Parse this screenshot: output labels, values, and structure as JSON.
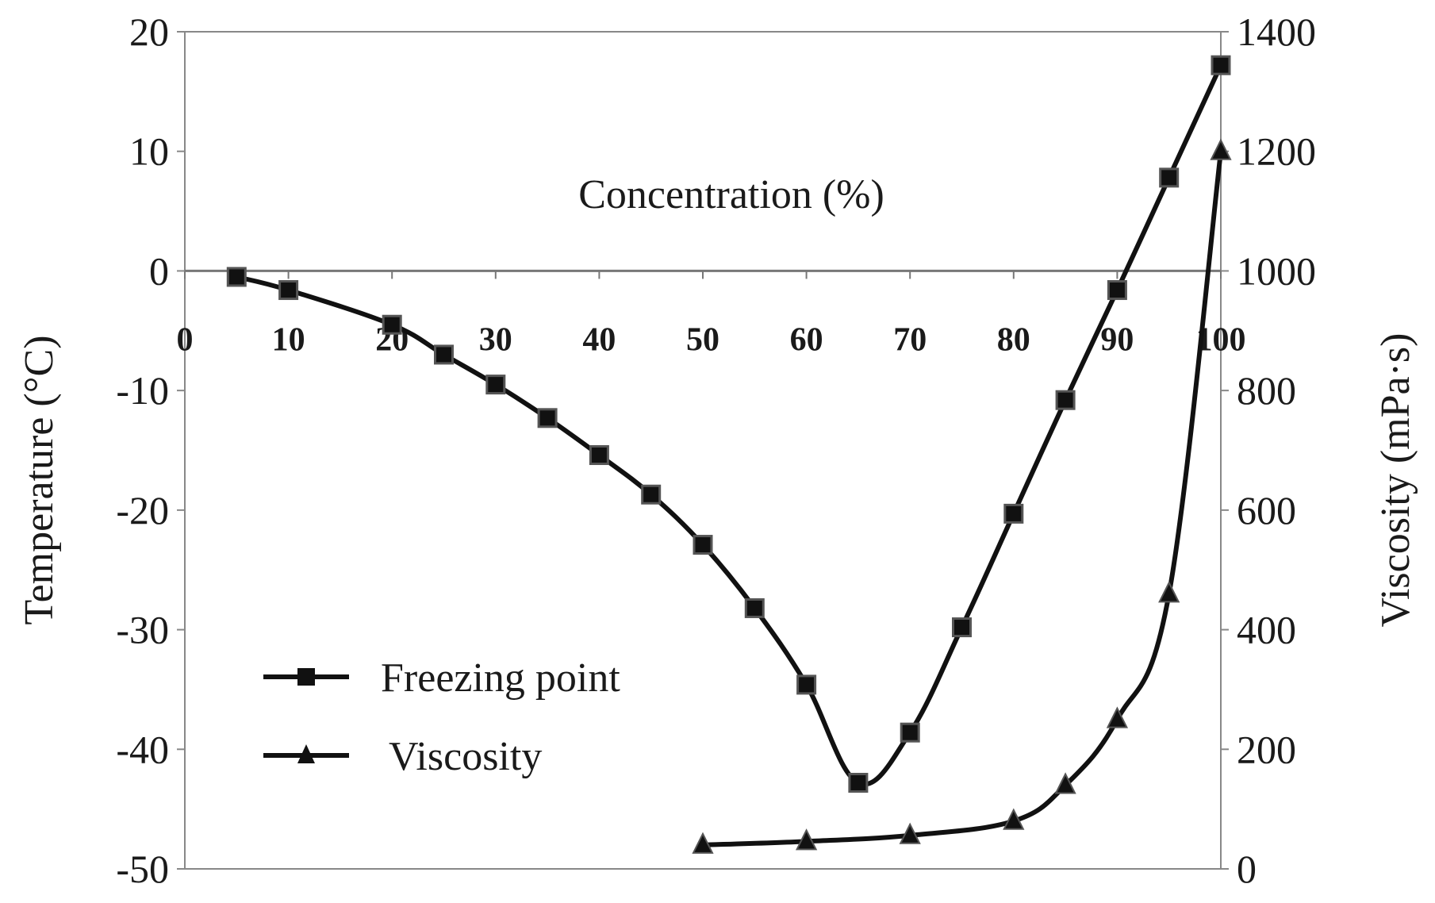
{
  "chart_data": {
    "type": "line",
    "title": "",
    "xlabel": "Concentration (%)",
    "ylabel": "Temperature (°C)",
    "y2label": "Viscosity (mPa·s)",
    "xlim": [
      0,
      100
    ],
    "ylim": [
      -50,
      20
    ],
    "y2lim": [
      0,
      1400
    ],
    "x_ticks": [
      "0",
      "10",
      "20",
      "30",
      "40",
      "50",
      "60",
      "70",
      "80",
      "90",
      "100"
    ],
    "y_ticks": [
      "20",
      "10",
      "0",
      "-10",
      "-20",
      "-30",
      "-40",
      "-50"
    ],
    "y2_ticks": [
      "1400",
      "1200",
      "1000",
      "800",
      "600",
      "400",
      "200",
      "0"
    ],
    "grid": false,
    "legend_position": "bottom-left",
    "series": [
      {
        "name": "Freezing point",
        "axis": "left",
        "marker": "square",
        "x": [
          5,
          10,
          20,
          25,
          30,
          35,
          40,
          45,
          50,
          55,
          60,
          65,
          70,
          75,
          80,
          85,
          90,
          95,
          100
        ],
        "values": [
          -0.5,
          -1.6,
          -4.5,
          -7,
          -9.5,
          -12.3,
          -15.4,
          -18.7,
          -22.9,
          -28.2,
          -34.6,
          -42.8,
          -38.6,
          -29.8,
          -20.3,
          -10.8,
          -1.6,
          7.8,
          17.2
        ]
      },
      {
        "name": "Viscosity",
        "axis": "right",
        "marker": "triangle",
        "x": [
          50,
          60,
          70,
          80,
          85,
          90,
          95,
          100
        ],
        "values": [
          40,
          46,
          56,
          80,
          140,
          250,
          460,
          1200
        ]
      }
    ]
  }
}
